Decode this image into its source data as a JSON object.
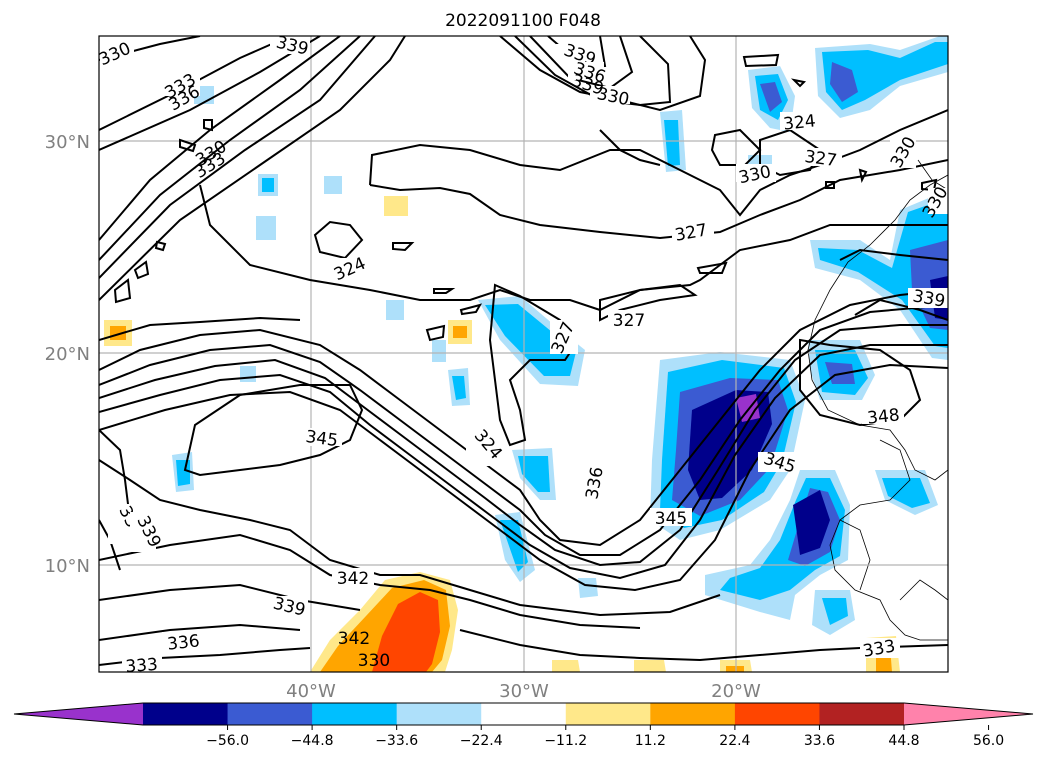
{
  "title": "2022091100 F048",
  "axes": {
    "lat_ticks": [
      "30°N",
      "20°N",
      "10°N"
    ],
    "lon_ticks": [
      "40°W",
      "30°W",
      "20°W"
    ]
  },
  "colorbar": {
    "labels": [
      "−56.0",
      "−44.8",
      "−33.6",
      "−22.4",
      "−11.2",
      "11.2",
      "22.4",
      "33.6",
      "44.8",
      "56.0"
    ],
    "colors": [
      "#9932cc",
      "#00008b",
      "#3b5bd2",
      "#00bfff",
      "#aee0fa",
      "#ffffff",
      "#ffe88a",
      "#ffa500",
      "#ff4500",
      "#b22222",
      "#ff82ab"
    ]
  },
  "contour_labels": [
    "330",
    "339",
    "333",
    "336",
    "339",
    "330",
    "330",
    "333",
    "336",
    "339",
    "330",
    "324",
    "327",
    "330",
    "330",
    "324",
    "327",
    "327",
    "327",
    "339",
    "345",
    "324",
    "336",
    "345",
    "348",
    "345",
    "336",
    "339",
    "342",
    "339",
    "336",
    "333",
    "342",
    "330",
    "333"
  ]
}
